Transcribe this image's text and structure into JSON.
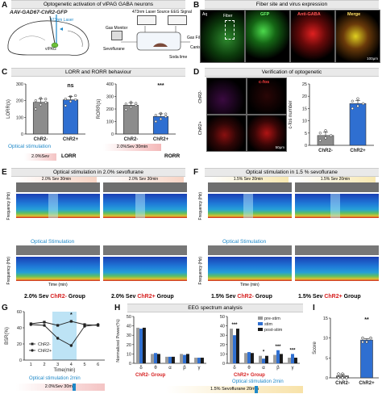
{
  "panel_letters": [
    "A",
    "B",
    "C",
    "D",
    "E",
    "F",
    "G",
    "H",
    "I"
  ],
  "panelA": {
    "title": "Optogenetic activation of vlPAG GABA neurons",
    "virus": "AAV-GAD67-ChR2-GFP",
    "laser_label": "473nm Laser",
    "vlpag_label": "vlPAG",
    "laser_source": "473nm Laser Source",
    "eeg_signal": "EEG Signal",
    "gas_monitor": "Gas Monitor",
    "gas_filter": "Gas Filter",
    "sevoflurane": "Sevoflurane",
    "canister": "Canister",
    "soda_lime": "Soda lime"
  },
  "panelB": {
    "title": "Fiber site and virus expression",
    "labels": [
      "GFP",
      "Anti-GABA",
      "Merge"
    ],
    "scale": "100μm",
    "aq_label": "Aq",
    "fiber_label": "Fiber"
  },
  "panelC": {
    "title": "LORR and RORR behaviour",
    "lorr_ylabel": "LORR(s)",
    "rorr_ylabel": "RORR(s)",
    "groups": [
      "ChR2-",
      "ChR2+"
    ],
    "lorr_sig": "ns",
    "rorr_sig": "***",
    "opt_stim": "Optical stimulation",
    "sev_label": "2.0%Sev",
    "sev30": "2.0%Sev 30min",
    "lorr_tag": "LORR",
    "rorr_tag": "RORR"
  },
  "panelD": {
    "title": "Verification of optogenetic",
    "labels": [
      "ChR2-",
      "ChR2+"
    ],
    "stain": "c-fos",
    "ylabel": "c-fos number",
    "groups": [
      "ChR2-",
      "ChR2+"
    ],
    "scale": "50μm"
  },
  "panelE": {
    "title": "Optical stimulation in 2.0% sevoflurane",
    "sev_bar": "2.0% Sev 30min",
    "opt_stim": "Optical Stimulation",
    "ylabel": "Frequency (Hz)",
    "ylabel2": "Frequency (Hz)",
    "xlabel": "Time (min)",
    "group_left_prefix": "2.0% Sev ",
    "group_left_tag": "ChR2-",
    "group_right_prefix": "2.0% Sev ",
    "group_right_tag": "ChR2+",
    "group_suffix": " Group"
  },
  "panelF": {
    "title": "Optical stimulation in 1.5 % sevoflurane",
    "sev_bar": "1.5% Sev 20min",
    "opt_stim": "Optical Stimulation",
    "ylabel": "Frequency (Hz)",
    "ylabel2": "Frequency (Hz)",
    "xlabel": "Time (min)",
    "group_left_prefix": "1.5% Sev ",
    "group_left_tag": "ChR2-",
    "group_right_prefix": "1.5% Sev ",
    "group_right_tag": "ChR2+",
    "group_suffix": " Group"
  },
  "panelG": {
    "ylabel": "BSR(%)",
    "xlabel": "Time(min)",
    "legend": [
      "ChR2-",
      "ChR2+"
    ],
    "sig": "*",
    "opt_stim": "Optical stimulation 2min",
    "sev_bar": "2.0%Sev 30min"
  },
  "panelH": {
    "title": "EEG spectrum analysis",
    "ylabel": "Normalized Power(%)",
    "legend": [
      "pre-stim",
      "stim",
      "post-stim"
    ],
    "bands": [
      "δ",
      "θ",
      "α",
      "β",
      "γ"
    ],
    "group_left": "ChR2- Group",
    "group_right": "ChR2+ Group",
    "opt_stim": "Optical stimulation 2min",
    "sev_bar": "1.5% Sevoflurane 20min",
    "sig_right": [
      "***",
      "",
      "*",
      "***",
      "***"
    ]
  },
  "panelI": {
    "ylabel": "Score",
    "groups": [
      "ChR2-",
      "ChR2+"
    ],
    "sig": "**"
  },
  "chart_data": [
    {
      "type": "bar",
      "panel": "C-left",
      "ylabel": "LORR(s)",
      "categories": [
        "ChR2-",
        "ChR2+"
      ],
      "values": [
        190,
        205
      ],
      "ylim": [
        0,
        300
      ],
      "yticks": [
        0,
        100,
        200,
        300
      ],
      "points": [
        [
          150,
          175,
          190,
          200,
          215,
          210
        ],
        [
          170,
          195,
          205,
          210,
          225,
          230
        ]
      ]
    },
    {
      "type": "bar",
      "panel": "C-right",
      "ylabel": "RORR(s)",
      "categories": [
        "ChR2-",
        "ChR2+"
      ],
      "values": [
        230,
        140
      ],
      "ylim": [
        0,
        400
      ],
      "yticks": [
        0,
        100,
        200,
        300,
        400
      ],
      "points": [
        [
          195,
          215,
          230,
          240,
          255,
          245
        ],
        [
          100,
          120,
          140,
          150,
          165,
          160
        ]
      ]
    },
    {
      "type": "bar",
      "panel": "D",
      "ylabel": "c-fos number",
      "categories": [
        "ChR2-",
        "ChR2+"
      ],
      "values": [
        4,
        17
      ],
      "ylim": [
        0,
        25
      ],
      "yticks": [
        0,
        5,
        10,
        15,
        20,
        25
      ],
      "points": [
        [
          2,
          3,
          4,
          5,
          6
        ],
        [
          15,
          16,
          17,
          18,
          19
        ]
      ]
    },
    {
      "type": "line",
      "panel": "G",
      "ylabel": "BSR(%)",
      "xlabel": "Time(min)",
      "x": [
        1,
        2,
        3,
        4,
        5,
        6
      ],
      "ylim": [
        0,
        60
      ],
      "yticks": [
        0,
        20,
        40,
        60
      ],
      "series": [
        {
          "name": "ChR2-",
          "values": [
            45,
            47,
            43,
            48,
            44,
            43
          ]
        },
        {
          "name": "ChR2+",
          "values": [
            44,
            43,
            27,
            18,
            42,
            44
          ]
        }
      ]
    },
    {
      "type": "bar",
      "panel": "H-left",
      "ylabel": "Normalized Power(%)",
      "categories": [
        "δ",
        "θ",
        "α",
        "β",
        "γ"
      ],
      "ylim": [
        0,
        50
      ],
      "yticks": [
        0,
        10,
        20,
        30,
        40,
        50
      ],
      "series": [
        {
          "name": "pre-stim",
          "values": [
            38,
            10,
            7,
            10,
            6
          ]
        },
        {
          "name": "stim",
          "values": [
            37,
            11,
            7,
            9,
            6
          ]
        },
        {
          "name": "post-stim",
          "values": [
            38,
            10,
            7,
            10,
            6
          ]
        }
      ]
    },
    {
      "type": "bar",
      "panel": "H-right",
      "ylabel": "Normalized Power(%)",
      "categories": [
        "δ",
        "θ",
        "α",
        "β",
        "γ"
      ],
      "ylim": [
        0,
        50
      ],
      "yticks": [
        0,
        10,
        20,
        30,
        40,
        50
      ],
      "series": [
        {
          "name": "pre-stim",
          "values": [
            37,
            11,
            8,
            9,
            6
          ]
        },
        {
          "name": "stim",
          "values": [
            30,
            12,
            5,
            14,
            10
          ]
        },
        {
          "name": "post-stim",
          "values": [
            37,
            11,
            8,
            10,
            6
          ]
        }
      ]
    },
    {
      "type": "bar",
      "panel": "I",
      "ylabel": "Score",
      "categories": [
        "ChR2-",
        "ChR2+"
      ],
      "values": [
        0.5,
        9.5
      ],
      "ylim": [
        0,
        15
      ],
      "yticks": [
        0,
        5,
        10,
        15
      ],
      "points": [
        [
          0,
          0,
          0,
          1,
          1,
          0,
          1,
          0
        ],
        [
          9,
          9,
          10,
          10,
          9,
          10,
          10,
          9
        ]
      ]
    }
  ],
  "colors": {
    "accent_blue": "#1e88c8",
    "sig_red": "#d62020",
    "bar_grey": "#8c8c8c",
    "bar_blue": "#2f6fd1",
    "chr2_minus": "#444444",
    "chr2_plus": "#1b1b1b",
    "stim_shade": "#bde3f5"
  }
}
